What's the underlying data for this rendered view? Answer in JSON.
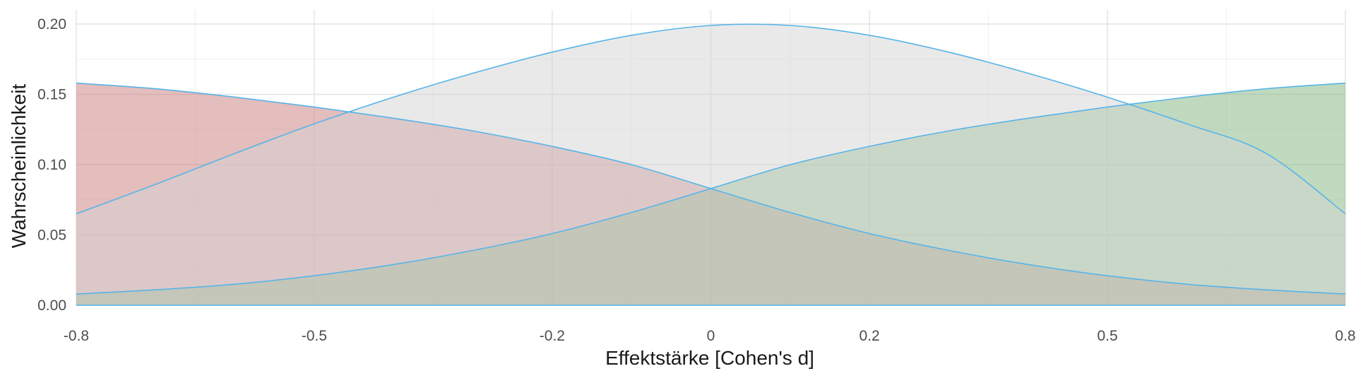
{
  "chart_data": {
    "type": "area",
    "title": "",
    "xlabel": "Effektstärke [Cohen's d]",
    "ylabel": "Wahrscheinlichkeit",
    "xlim": [
      -0.8,
      0.8
    ],
    "ylim": [
      0,
      0.2
    ],
    "x_ticks": [
      -0.8,
      -0.5,
      -0.2,
      0,
      0.2,
      0.5,
      0.8
    ],
    "x_tick_labels": [
      "-0.8",
      "-0.5",
      "-0.2",
      "0",
      "0.2",
      "0.5",
      "0.8"
    ],
    "y_ticks": [
      0,
      0.05,
      0.1,
      0.15,
      0.2
    ],
    "y_tick_labels": [
      "0.00",
      "0.05",
      "0.10",
      "0.15",
      "0.20"
    ],
    "grid": true,
    "legend": "none",
    "outline_color": "#56B4E9",
    "x": [
      -0.8,
      -0.7,
      -0.6,
      -0.5,
      -0.4,
      -0.3,
      -0.2,
      -0.1,
      0,
      0.1,
      0.2,
      0.3,
      0.4,
      0.5,
      0.6,
      0.7,
      0.8
    ],
    "series": [
      {
        "fill": "#C97B7B",
        "values": [
          0.158,
          0.154,
          0.148,
          0.141,
          0.133,
          0.124,
          0.113,
          0.1,
          0.083,
          0.066,
          0.051,
          0.039,
          0.029,
          0.021,
          0.015,
          0.011,
          0.008
        ]
      },
      {
        "fill": "#7FB57F",
        "values": [
          0.008,
          0.011,
          0.015,
          0.021,
          0.029,
          0.039,
          0.051,
          0.066,
          0.083,
          0.1,
          0.113,
          0.124,
          0.133,
          0.141,
          0.148,
          0.154,
          0.158
        ]
      },
      {
        "fill": "#D3D3D3",
        "values": [
          0.065,
          0.086,
          0.108,
          0.129,
          0.148,
          0.165,
          0.18,
          0.192,
          0.199,
          0.199,
          0.192,
          0.18,
          0.165,
          0.148,
          0.129,
          0.108,
          0.065
        ]
      }
    ]
  }
}
